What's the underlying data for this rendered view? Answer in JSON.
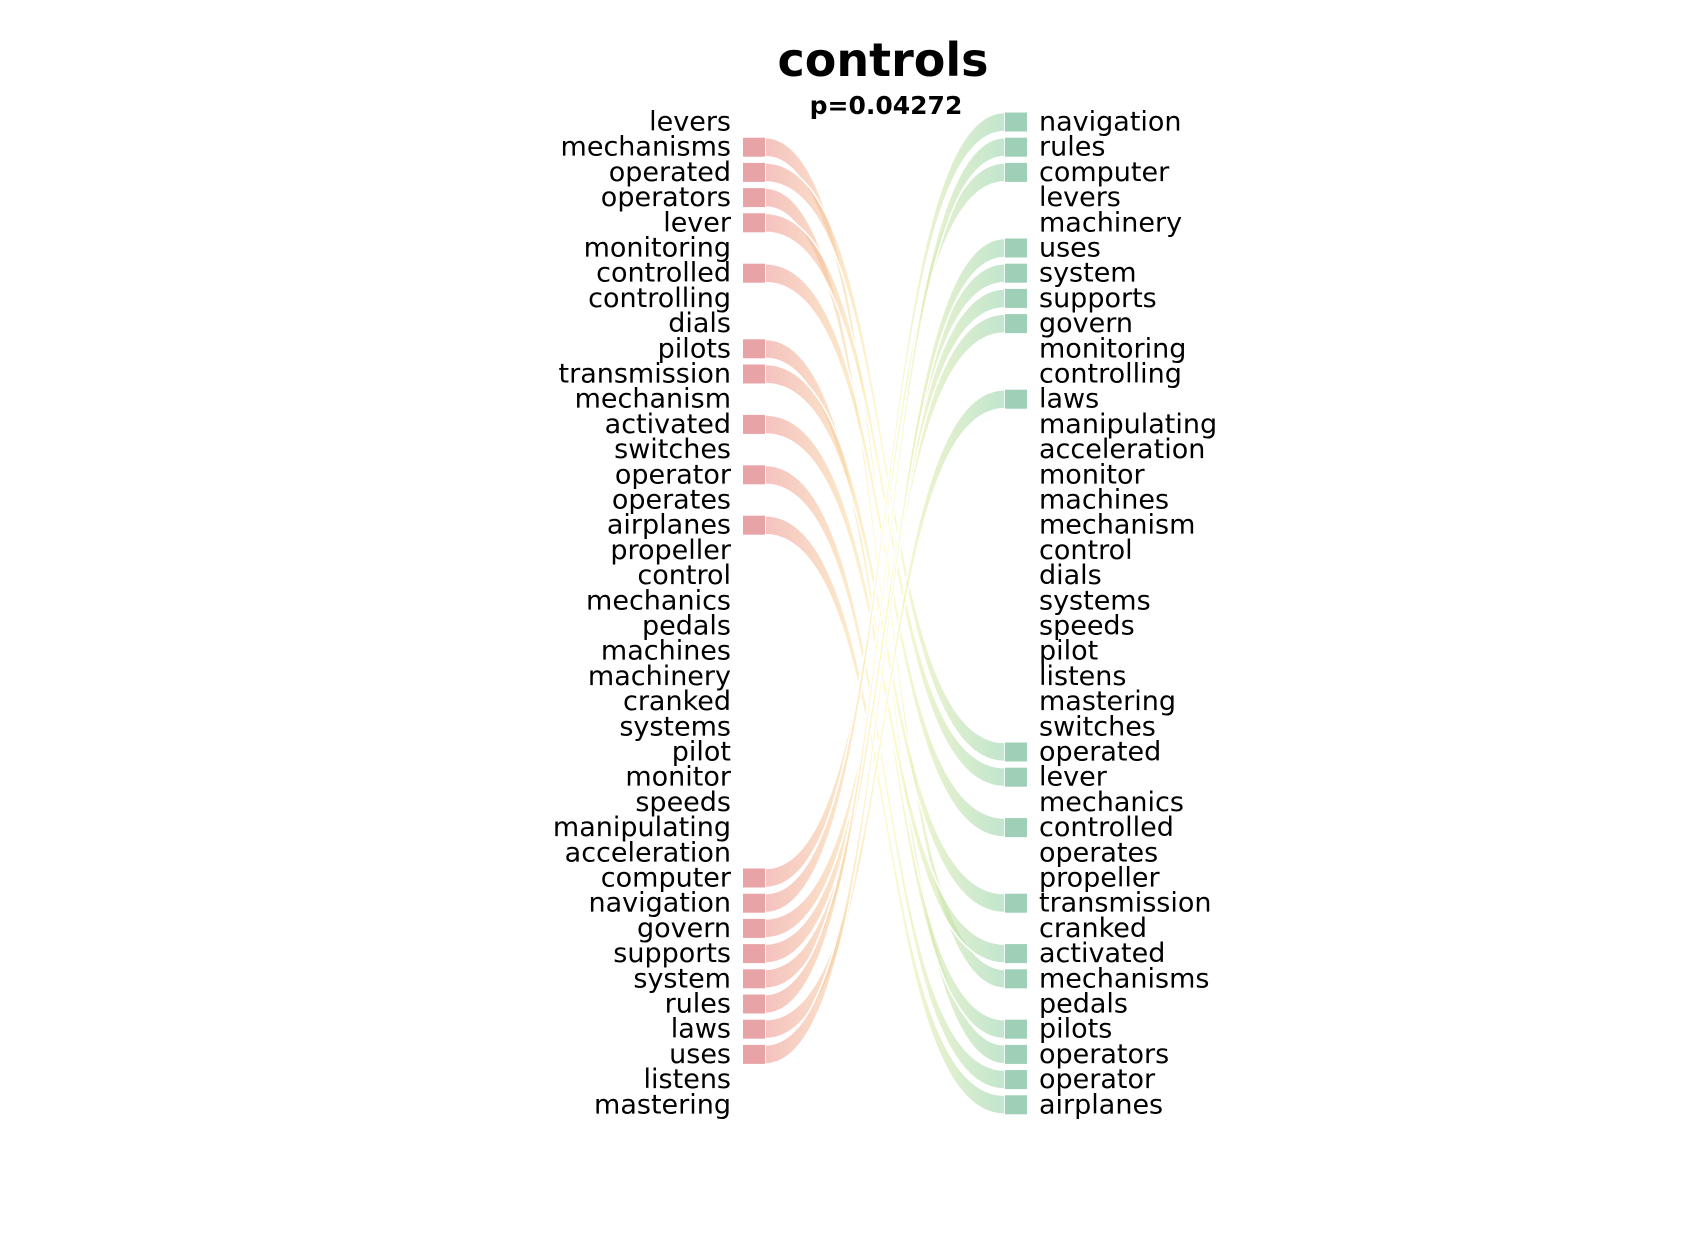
{
  "chart_data": {
    "type": "slope",
    "title": "controls",
    "subtitle": "p=0.04272",
    "left_labels": [
      "levers",
      "mechanisms",
      "operated",
      "operators",
      "lever",
      "monitoring",
      "controlled",
      "controlling",
      "dials",
      "pilots",
      "transmission",
      "mechanism",
      "activated",
      "switches",
      "operator",
      "operates",
      "airplanes",
      "propeller",
      "control",
      "mechanics",
      "pedals",
      "machines",
      "machinery",
      "cranked",
      "systems",
      "pilot",
      "monitor",
      "speeds",
      "manipulating",
      "acceleration",
      "computer",
      "navigation",
      "govern",
      "supports",
      "system",
      "rules",
      "laws",
      "uses",
      "listens",
      "mastering"
    ],
    "right_labels": [
      "navigation",
      "rules",
      "computer",
      "levers",
      "machinery",
      "uses",
      "system",
      "supports",
      "govern",
      "monitoring",
      "controlling",
      "laws",
      "manipulating",
      "acceleration",
      "monitor",
      "machines",
      "mechanism",
      "control",
      "dials",
      "systems",
      "speeds",
      "pilot",
      "listens",
      "mastering",
      "switches",
      "operated",
      "lever",
      "mechanics",
      "controlled",
      "operates",
      "propeller",
      "transmission",
      "cranked",
      "activated",
      "mechanisms",
      "pedals",
      "pilots",
      "operators",
      "operator",
      "airplanes"
    ],
    "links": [
      {
        "word": "mechanisms",
        "from": 1,
        "to": 34
      },
      {
        "word": "operated",
        "from": 2,
        "to": 25
      },
      {
        "word": "operators",
        "from": 3,
        "to": 37
      },
      {
        "word": "lever",
        "from": 4,
        "to": 26
      },
      {
        "word": "controlled",
        "from": 6,
        "to": 28
      },
      {
        "word": "pilots",
        "from": 9,
        "to": 36
      },
      {
        "word": "transmission",
        "from": 10,
        "to": 31
      },
      {
        "word": "activated",
        "from": 12,
        "to": 33
      },
      {
        "word": "operator",
        "from": 14,
        "to": 38
      },
      {
        "word": "airplanes",
        "from": 16,
        "to": 39
      },
      {
        "word": "computer",
        "from": 30,
        "to": 2
      },
      {
        "word": "navigation",
        "from": 31,
        "to": 0
      },
      {
        "word": "govern",
        "from": 32,
        "to": 8
      },
      {
        "word": "supports",
        "from": 33,
        "to": 7
      },
      {
        "word": "system",
        "from": 34,
        "to": 6
      },
      {
        "word": "rules",
        "from": 35,
        "to": 1
      },
      {
        "word": "laws",
        "from": 36,
        "to": 11
      },
      {
        "word": "uses",
        "from": 37,
        "to": 5
      }
    ],
    "colors": {
      "left_bar": "#e8a3a6",
      "right_bar": "#9dd0b6",
      "flow_start": "#ec8f8a",
      "flow_mid": "#fff7a8",
      "flow_end": "#8fd0a6"
    }
  }
}
